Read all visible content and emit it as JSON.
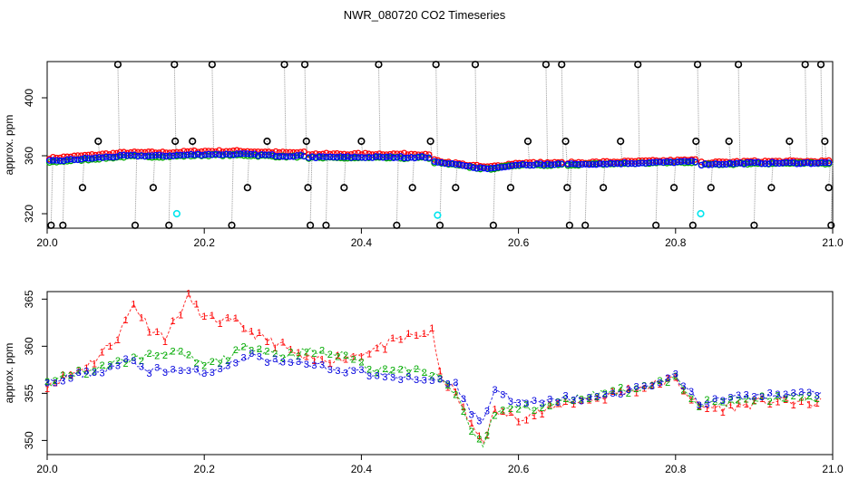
{
  "chart_data": [
    {
      "type": "scatter",
      "title": "NWR_080720  CO2 Timeseries",
      "xlabel": "",
      "ylabel": "approx. ppm",
      "xlim": [
        20.0,
        21.0
      ],
      "ylim": [
        310,
        425
      ],
      "xticks": [
        "20.0",
        "20.2",
        "20.4",
        "20.6",
        "20.8",
        "21.0"
      ],
      "yticks": [
        "320",
        "360",
        "400"
      ],
      "colors": {
        "line1": "#ff0000",
        "line2": "#00aa00",
        "line3": "#0000ff",
        "standard": "#000000",
        "reference": "#00e5ee",
        "trace": "#999999"
      },
      "segments": [
        {
          "x0": 20.0,
          "x1": 20.33,
          "anchors": [
            [
              20.0,
              356
            ],
            [
              20.05,
              358
            ],
            [
              20.1,
              360
            ],
            [
              20.15,
              360
            ],
            [
              20.2,
              361
            ],
            [
              20.25,
              361
            ],
            [
              20.3,
              360
            ],
            [
              20.33,
              360
            ]
          ]
        },
        {
          "x0": 20.33,
          "x1": 20.49,
          "anchors": [
            [
              20.33,
              359
            ],
            [
              20.4,
              359
            ],
            [
              20.45,
              359
            ],
            [
              20.49,
              359
            ]
          ]
        },
        {
          "x0": 20.49,
          "x1": 20.66,
          "anchors": [
            [
              20.49,
              356
            ],
            [
              20.53,
              353
            ],
            [
              20.56,
              351
            ],
            [
              20.6,
              354
            ],
            [
              20.66,
              354
            ]
          ]
        },
        {
          "x0": 20.66,
          "x1": 20.83,
          "anchors": [
            [
              20.66,
              354
            ],
            [
              20.75,
              355
            ],
            [
              20.83,
              356
            ]
          ]
        },
        {
          "x0": 20.83,
          "x1": 21.0,
          "anchors": [
            [
              20.83,
              354
            ],
            [
              20.9,
              355
            ],
            [
              21.0,
              355
            ]
          ]
        }
      ],
      "standard_points": [
        {
          "x": 20.005,
          "y": 312
        },
        {
          "x": 20.02,
          "y": 312
        },
        {
          "x": 20.045,
          "y": 338
        },
        {
          "x": 20.065,
          "y": 370
        },
        {
          "x": 20.09,
          "y": 423
        },
        {
          "x": 20.112,
          "y": 312
        },
        {
          "x": 20.135,
          "y": 338
        },
        {
          "x": 20.155,
          "y": 312
        },
        {
          "x": 20.162,
          "y": 423
        },
        {
          "x": 20.163,
          "y": 370
        },
        {
          "x": 20.185,
          "y": 370
        },
        {
          "x": 20.21,
          "y": 423
        },
        {
          "x": 20.235,
          "y": 312
        },
        {
          "x": 20.255,
          "y": 338
        },
        {
          "x": 20.28,
          "y": 370
        },
        {
          "x": 20.302,
          "y": 423
        },
        {
          "x": 20.328,
          "y": 423
        },
        {
          "x": 20.33,
          "y": 370
        },
        {
          "x": 20.332,
          "y": 338
        },
        {
          "x": 20.335,
          "y": 312
        },
        {
          "x": 20.355,
          "y": 312
        },
        {
          "x": 20.378,
          "y": 338
        },
        {
          "x": 20.4,
          "y": 370
        },
        {
          "x": 20.422,
          "y": 423
        },
        {
          "x": 20.445,
          "y": 312
        },
        {
          "x": 20.465,
          "y": 338
        },
        {
          "x": 20.488,
          "y": 370
        },
        {
          "x": 20.495,
          "y": 423
        },
        {
          "x": 20.5,
          "y": 312
        },
        {
          "x": 20.52,
          "y": 338
        },
        {
          "x": 20.545,
          "y": 423
        },
        {
          "x": 20.568,
          "y": 312
        },
        {
          "x": 20.59,
          "y": 338
        },
        {
          "x": 20.612,
          "y": 370
        },
        {
          "x": 20.635,
          "y": 423
        },
        {
          "x": 20.655,
          "y": 423
        },
        {
          "x": 20.66,
          "y": 370
        },
        {
          "x": 20.662,
          "y": 338
        },
        {
          "x": 20.665,
          "y": 312
        },
        {
          "x": 20.685,
          "y": 312
        },
        {
          "x": 20.708,
          "y": 338
        },
        {
          "x": 20.73,
          "y": 370
        },
        {
          "x": 20.752,
          "y": 423
        },
        {
          "x": 20.775,
          "y": 312
        },
        {
          "x": 20.798,
          "y": 338
        },
        {
          "x": 20.822,
          "y": 312
        },
        {
          "x": 20.826,
          "y": 370
        },
        {
          "x": 20.828,
          "y": 423
        },
        {
          "x": 20.845,
          "y": 338
        },
        {
          "x": 20.868,
          "y": 370
        },
        {
          "x": 20.88,
          "y": 423
        },
        {
          "x": 20.9,
          "y": 312
        },
        {
          "x": 20.922,
          "y": 338
        },
        {
          "x": 20.945,
          "y": 370
        },
        {
          "x": 20.965,
          "y": 423
        },
        {
          "x": 20.985,
          "y": 423
        },
        {
          "x": 20.99,
          "y": 370
        },
        {
          "x": 20.995,
          "y": 338
        },
        {
          "x": 20.998,
          "y": 312
        }
      ],
      "reference_points": [
        {
          "x": 20.165,
          "y": 320
        },
        {
          "x": 20.497,
          "y": 319
        },
        {
          "x": 20.832,
          "y": 320
        }
      ]
    },
    {
      "type": "scatter",
      "title": "",
      "xlabel": "",
      "ylabel": "approx. ppm",
      "xlim": [
        20.0,
        21.0
      ],
      "ylim": [
        348.5,
        365.8
      ],
      "xticks": [
        "20.0",
        "20.2",
        "20.4",
        "20.6",
        "20.8",
        "21.0"
      ],
      "yticks": [
        "350",
        "355",
        "360",
        "365"
      ],
      "marker_labels": {
        "line1": "1",
        "line2": "2",
        "line3": "3"
      },
      "series": [
        {
          "name": "1",
          "color": "#ff0000",
          "anchors": [
            [
              20.0,
              356
            ],
            [
              20.03,
              357
            ],
            [
              20.06,
              358.5
            ],
            [
              20.09,
              361
            ],
            [
              20.11,
              364.5
            ],
            [
              20.13,
              362
            ],
            [
              20.15,
              361
            ],
            [
              20.165,
              363
            ],
            [
              20.18,
              365.2
            ],
            [
              20.2,
              363
            ],
            [
              20.24,
              362.5
            ],
            [
              20.27,
              361
            ],
            [
              20.3,
              360
            ],
            [
              20.33,
              358.5
            ],
            [
              20.38,
              358.8
            ],
            [
              20.42,
              359.8
            ],
            [
              20.46,
              361
            ],
            [
              20.49,
              361.5
            ],
            [
              20.5,
              357
            ],
            [
              20.52,
              355
            ],
            [
              20.54,
              351.5
            ],
            [
              20.555,
              350
            ],
            [
              20.57,
              353
            ],
            [
              20.6,
              352.5
            ],
            [
              20.63,
              353
            ],
            [
              20.66,
              354
            ],
            [
              20.7,
              354.5
            ],
            [
              20.75,
              355.5
            ],
            [
              20.8,
              356.5
            ],
            [
              20.83,
              353.5
            ],
            [
              20.87,
              353.5
            ],
            [
              20.92,
              354.2
            ],
            [
              20.98,
              354
            ]
          ],
          "noise": 0.5
        },
        {
          "name": "2",
          "color": "#00aa00",
          "anchors": [
            [
              20.0,
              356
            ],
            [
              20.03,
              357
            ],
            [
              20.06,
              357.5
            ],
            [
              20.1,
              358.5
            ],
            [
              20.13,
              359
            ],
            [
              20.16,
              359.5
            ],
            [
              20.2,
              358
            ],
            [
              20.22,
              358.5
            ],
            [
              20.26,
              360
            ],
            [
              20.3,
              359
            ],
            [
              20.33,
              359.5
            ],
            [
              20.38,
              359
            ],
            [
              20.42,
              357.5
            ],
            [
              20.46,
              357.5
            ],
            [
              20.49,
              357
            ],
            [
              20.5,
              356.5
            ],
            [
              20.52,
              355
            ],
            [
              20.54,
              351
            ],
            [
              20.555,
              349.5
            ],
            [
              20.57,
              353
            ],
            [
              20.6,
              353.5
            ],
            [
              20.63,
              353.5
            ],
            [
              20.66,
              354.2
            ],
            [
              20.7,
              355
            ],
            [
              20.75,
              355.5
            ],
            [
              20.8,
              356.5
            ],
            [
              20.83,
              354
            ],
            [
              20.87,
              354
            ],
            [
              20.92,
              354.5
            ],
            [
              20.98,
              354.5
            ]
          ],
          "noise": 0.4
        },
        {
          "name": "3",
          "color": "#0000dd",
          "anchors": [
            [
              20.0,
              356
            ],
            [
              20.03,
              356.8
            ],
            [
              20.06,
              357.2
            ],
            [
              20.09,
              358
            ],
            [
              20.1,
              358.5
            ],
            [
              20.13,
              357.5
            ],
            [
              20.16,
              357.5
            ],
            [
              20.2,
              357.2
            ],
            [
              20.23,
              358
            ],
            [
              20.26,
              359
            ],
            [
              20.3,
              358.2
            ],
            [
              20.33,
              358
            ],
            [
              20.38,
              357.5
            ],
            [
              20.42,
              357
            ],
            [
              20.46,
              356.5
            ],
            [
              20.49,
              356.5
            ],
            [
              20.5,
              356.5
            ],
            [
              20.52,
              356
            ],
            [
              20.54,
              353
            ],
            [
              20.555,
              352
            ],
            [
              20.57,
              355.5
            ],
            [
              20.6,
              354
            ],
            [
              20.63,
              354
            ],
            [
              20.66,
              354.5
            ],
            [
              20.7,
              354.5
            ],
            [
              20.75,
              355.5
            ],
            [
              20.8,
              356.8
            ],
            [
              20.83,
              354
            ],
            [
              20.87,
              354.5
            ],
            [
              20.92,
              354.8
            ],
            [
              20.98,
              355
            ]
          ],
          "noise": 0.35
        }
      ]
    }
  ]
}
